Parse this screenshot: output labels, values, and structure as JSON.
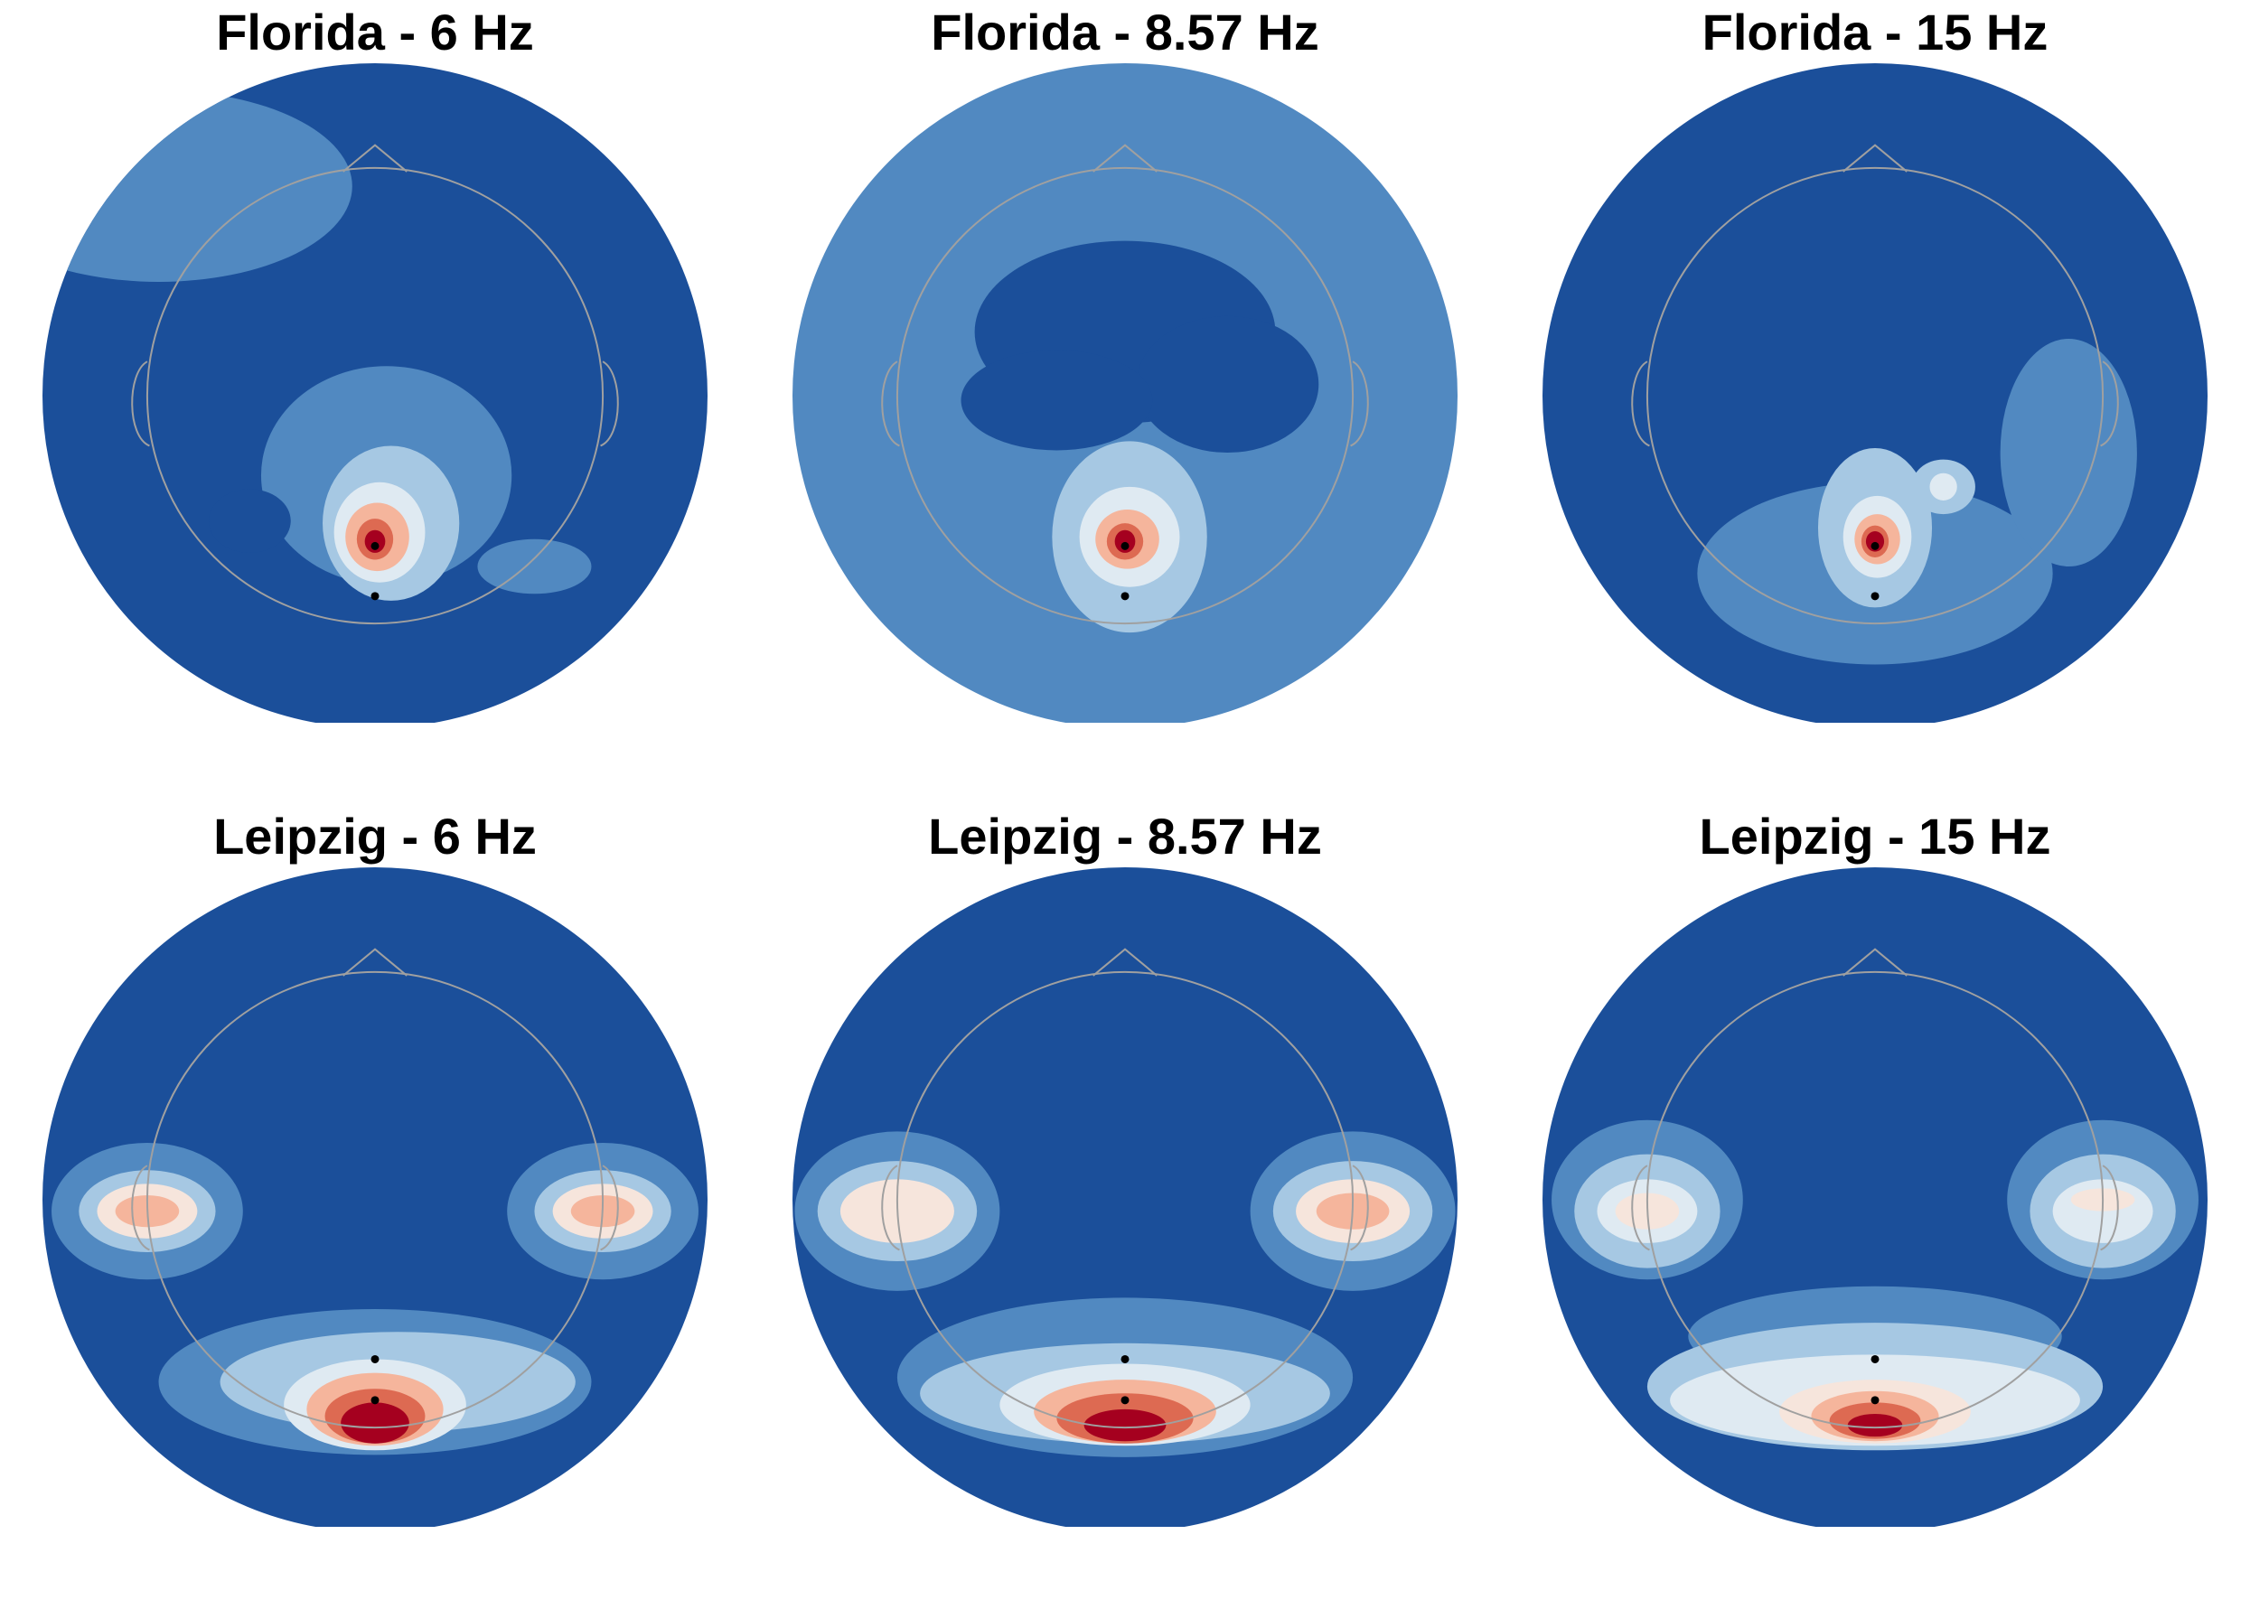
{
  "figure": {
    "colormap": {
      "name": "RdBu_r",
      "levels": [
        "#1b4f9a",
        "#5189c1",
        "#a6c8e3",
        "#dfeaf2",
        "#f6e5dc",
        "#f5b59c",
        "#dd6a52",
        "#a5001f"
      ]
    },
    "head_outline_color": "#a0a0a0",
    "sensor_color": "#000000"
  },
  "chart_data": [
    {
      "type": "heatmap",
      "title": "Florida - 6 Hz",
      "sensors": [
        [
          0,
          -0.66
        ],
        [
          0,
          -0.88
        ]
      ],
      "background_level": 0,
      "blobs": [
        {
          "x": 0.05,
          "y": -0.35,
          "rx": 0.55,
          "ry": 0.48,
          "level": 1
        },
        {
          "x": -0.95,
          "y": 0.92,
          "rx": 0.85,
          "ry": 0.42,
          "level": 1
        },
        {
          "x": 0.7,
          "y": -0.75,
          "rx": 0.25,
          "ry": 0.12,
          "level": 1
        },
        {
          "x": -0.55,
          "y": -0.55,
          "rx": 0.18,
          "ry": 0.14,
          "level": 0
        },
        {
          "x": 0.07,
          "y": -0.56,
          "rx": 0.3,
          "ry": 0.34,
          "level": 2
        },
        {
          "x": 0.02,
          "y": -0.6,
          "rx": 0.2,
          "ry": 0.22,
          "level": 3
        },
        {
          "x": 0.01,
          "y": -0.62,
          "rx": 0.14,
          "ry": 0.15,
          "level": 5
        },
        {
          "x": 0.0,
          "y": -0.63,
          "rx": 0.08,
          "ry": 0.09,
          "level": 6
        },
        {
          "x": 0.0,
          "y": -0.64,
          "rx": 0.045,
          "ry": 0.05,
          "level": 7
        }
      ]
    },
    {
      "type": "heatmap",
      "title": "Florida - 8.57 Hz",
      "sensors": [
        [
          0,
          -0.66
        ],
        [
          0,
          -0.88
        ]
      ],
      "background_level": 1,
      "blobs": [
        {
          "x": 0.0,
          "y": 0.28,
          "rx": 0.66,
          "ry": 0.4,
          "level": 0
        },
        {
          "x": 0.45,
          "y": 0.05,
          "rx": 0.4,
          "ry": 0.3,
          "level": 0
        },
        {
          "x": -0.3,
          "y": -0.02,
          "rx": 0.42,
          "ry": 0.22,
          "level": 0
        },
        {
          "x": 0.02,
          "y": -0.62,
          "rx": 0.34,
          "ry": 0.42,
          "level": 2
        },
        {
          "x": 0.02,
          "y": -0.62,
          "rx": 0.22,
          "ry": 0.22,
          "level": 3
        },
        {
          "x": 0.01,
          "y": -0.63,
          "rx": 0.14,
          "ry": 0.13,
          "level": 5
        },
        {
          "x": 0.0,
          "y": -0.64,
          "rx": 0.08,
          "ry": 0.08,
          "level": 6
        },
        {
          "x": 0.0,
          "y": -0.64,
          "rx": 0.045,
          "ry": 0.05,
          "level": 7
        }
      ]
    },
    {
      "type": "heatmap",
      "title": "Florida - 15 Hz",
      "sensors": [
        [
          0,
          -0.66
        ],
        [
          0,
          -0.88
        ]
      ],
      "background_level": 0,
      "blobs": [
        {
          "x": 0.0,
          "y": -0.78,
          "rx": 0.78,
          "ry": 0.4,
          "level": 1
        },
        {
          "x": 0.85,
          "y": -0.25,
          "rx": 0.3,
          "ry": 0.5,
          "level": 1
        },
        {
          "x": 0.0,
          "y": -0.58,
          "rx": 0.25,
          "ry": 0.35,
          "level": 2
        },
        {
          "x": 0.3,
          "y": -0.4,
          "rx": 0.14,
          "ry": 0.12,
          "level": 2
        },
        {
          "x": 0.3,
          "y": -0.4,
          "rx": 0.06,
          "ry": 0.06,
          "level": 3
        },
        {
          "x": 0.01,
          "y": -0.62,
          "rx": 0.15,
          "ry": 0.18,
          "level": 3
        },
        {
          "x": 0.01,
          "y": -0.63,
          "rx": 0.1,
          "ry": 0.11,
          "level": 5
        },
        {
          "x": 0.0,
          "y": -0.64,
          "rx": 0.06,
          "ry": 0.07,
          "level": 6
        },
        {
          "x": 0.0,
          "y": -0.64,
          "rx": 0.04,
          "ry": 0.045,
          "level": 7
        }
      ]
    },
    {
      "type": "heatmap",
      "title": "Leipzig - 6 Hz",
      "sensors": [
        [
          0,
          -0.7
        ],
        [
          0,
          -0.88
        ]
      ],
      "background_level": 0,
      "blobs": [
        {
          "x": -1.0,
          "y": -0.05,
          "rx": 0.42,
          "ry": 0.3,
          "level": 1
        },
        {
          "x": 1.0,
          "y": -0.05,
          "rx": 0.42,
          "ry": 0.3,
          "level": 1
        },
        {
          "x": -1.0,
          "y": -0.05,
          "rx": 0.3,
          "ry": 0.18,
          "level": 2
        },
        {
          "x": 1.0,
          "y": -0.05,
          "rx": 0.3,
          "ry": 0.18,
          "level": 2
        },
        {
          "x": -1.0,
          "y": -0.05,
          "rx": 0.22,
          "ry": 0.12,
          "level": 4
        },
        {
          "x": 1.0,
          "y": -0.05,
          "rx": 0.22,
          "ry": 0.12,
          "level": 4
        },
        {
          "x": -1.0,
          "y": -0.05,
          "rx": 0.14,
          "ry": 0.07,
          "level": 5
        },
        {
          "x": 1.0,
          "y": -0.05,
          "rx": 0.14,
          "ry": 0.07,
          "level": 5
        },
        {
          "x": 0.0,
          "y": -0.8,
          "rx": 0.95,
          "ry": 0.32,
          "level": 1
        },
        {
          "x": 0.1,
          "y": -0.8,
          "rx": 0.78,
          "ry": 0.22,
          "level": 2
        },
        {
          "x": 0.0,
          "y": -0.9,
          "rx": 0.4,
          "ry": 0.2,
          "level": 3
        },
        {
          "x": 0.0,
          "y": -0.92,
          "rx": 0.3,
          "ry": 0.16,
          "level": 5
        },
        {
          "x": 0.0,
          "y": -0.95,
          "rx": 0.22,
          "ry": 0.12,
          "level": 6
        },
        {
          "x": 0.0,
          "y": -0.98,
          "rx": 0.15,
          "ry": 0.09,
          "level": 7
        }
      ]
    },
    {
      "type": "heatmap",
      "title": "Leipzig - 8.57 Hz",
      "sensors": [
        [
          0,
          -0.7
        ],
        [
          0,
          -0.88
        ]
      ],
      "background_level": 0,
      "blobs": [
        {
          "x": -1.0,
          "y": -0.05,
          "rx": 0.45,
          "ry": 0.35,
          "level": 1
        },
        {
          "x": 1.0,
          "y": -0.05,
          "rx": 0.45,
          "ry": 0.35,
          "level": 1
        },
        {
          "x": -1.0,
          "y": -0.05,
          "rx": 0.35,
          "ry": 0.22,
          "level": 2
        },
        {
          "x": 1.0,
          "y": -0.05,
          "rx": 0.35,
          "ry": 0.22,
          "level": 2
        },
        {
          "x": -1.0,
          "y": -0.05,
          "rx": 0.25,
          "ry": 0.14,
          "level": 4
        },
        {
          "x": 1.0,
          "y": -0.05,
          "rx": 0.25,
          "ry": 0.14,
          "level": 4
        },
        {
          "x": 1.0,
          "y": -0.05,
          "rx": 0.16,
          "ry": 0.08,
          "level": 5
        },
        {
          "x": 0.0,
          "y": -0.78,
          "rx": 1.0,
          "ry": 0.35,
          "level": 1
        },
        {
          "x": 0.0,
          "y": -0.85,
          "rx": 0.9,
          "ry": 0.22,
          "level": 2
        },
        {
          "x": 0.0,
          "y": -0.9,
          "rx": 0.55,
          "ry": 0.18,
          "level": 3
        },
        {
          "x": 0.0,
          "y": -0.93,
          "rx": 0.4,
          "ry": 0.14,
          "level": 5
        },
        {
          "x": 0.0,
          "y": -0.96,
          "rx": 0.3,
          "ry": 0.11,
          "level": 6
        },
        {
          "x": 0.0,
          "y": -0.99,
          "rx": 0.18,
          "ry": 0.07,
          "level": 7
        }
      ]
    },
    {
      "type": "heatmap",
      "title": "Leipzig - 15 Hz",
      "sensors": [
        [
          0,
          -0.7
        ],
        [
          0,
          -0.88
        ]
      ],
      "background_level": 0,
      "blobs": [
        {
          "x": -1.0,
          "y": 0.0,
          "rx": 0.42,
          "ry": 0.35,
          "level": 1
        },
        {
          "x": 1.0,
          "y": 0.0,
          "rx": 0.42,
          "ry": 0.35,
          "level": 1
        },
        {
          "x": -1.0,
          "y": -0.05,
          "rx": 0.32,
          "ry": 0.25,
          "level": 2
        },
        {
          "x": 1.0,
          "y": -0.05,
          "rx": 0.32,
          "ry": 0.25,
          "level": 2
        },
        {
          "x": -1.0,
          "y": -0.05,
          "rx": 0.22,
          "ry": 0.14,
          "level": 3
        },
        {
          "x": 1.0,
          "y": -0.05,
          "rx": 0.22,
          "ry": 0.14,
          "level": 3
        },
        {
          "x": -1.0,
          "y": -0.05,
          "rx": 0.14,
          "ry": 0.08,
          "level": 4
        },
        {
          "x": 1.0,
          "y": 0.0,
          "rx": 0.14,
          "ry": 0.05,
          "level": 4
        },
        {
          "x": 0.0,
          "y": -0.6,
          "rx": 0.82,
          "ry": 0.22,
          "level": 1
        },
        {
          "x": 0.0,
          "y": -0.82,
          "rx": 1.0,
          "ry": 0.28,
          "level": 2
        },
        {
          "x": 0.0,
          "y": -0.88,
          "rx": 0.9,
          "ry": 0.2,
          "level": 3
        },
        {
          "x": 0.0,
          "y": -0.93,
          "rx": 0.42,
          "ry": 0.14,
          "level": 4
        },
        {
          "x": 0.0,
          "y": -0.95,
          "rx": 0.28,
          "ry": 0.11,
          "level": 5
        },
        {
          "x": 0.0,
          "y": -0.97,
          "rx": 0.2,
          "ry": 0.08,
          "level": 6
        },
        {
          "x": 0.0,
          "y": -0.99,
          "rx": 0.12,
          "ry": 0.05,
          "level": 7
        }
      ]
    }
  ]
}
